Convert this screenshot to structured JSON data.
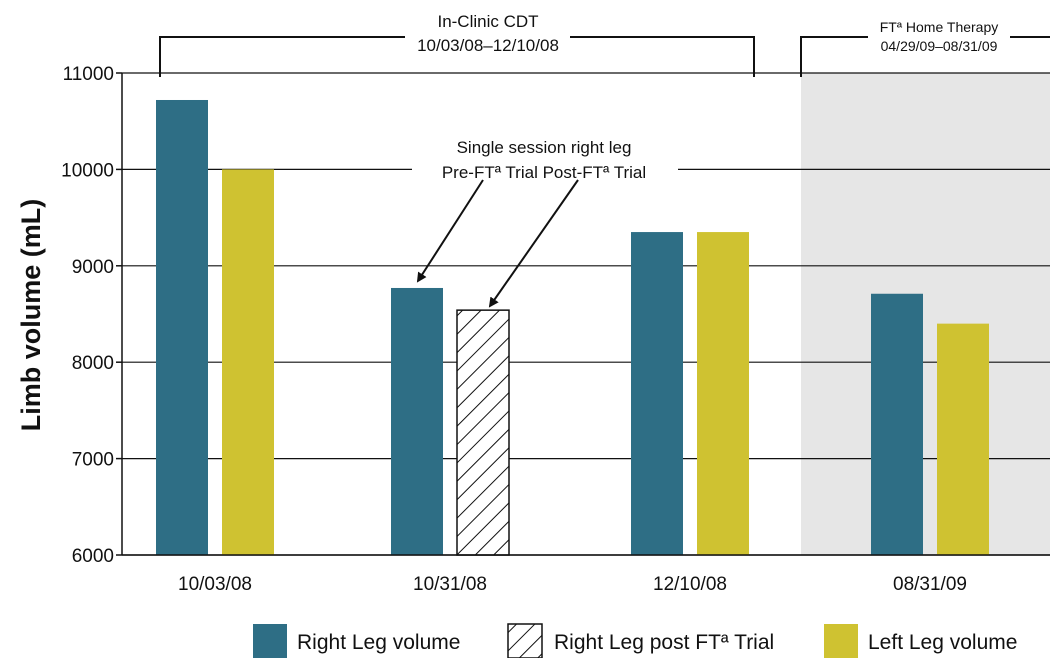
{
  "chart_data": {
    "type": "bar",
    "ylabel": "Limb volume (mL)",
    "xlabel": "",
    "ylim": [
      6000,
      11000
    ],
    "yticks": [
      6000,
      7000,
      8000,
      9000,
      10000,
      11000
    ],
    "grid": true,
    "categories": [
      "10/03/08",
      "10/31/08",
      "12/10/08",
      "08/31/09"
    ],
    "series": [
      {
        "name": "Right Leg volume",
        "values": [
          10720,
          8770,
          9350,
          8710
        ],
        "color": "#2e6e85",
        "pattern": "solid"
      },
      {
        "name": "Right Leg post FTª Trial",
        "values": [
          null,
          8540,
          null,
          null
        ],
        "color": "#ffffff",
        "pattern": "hatch"
      },
      {
        "name": "Left Leg volume",
        "values": [
          10000,
          null,
          9350,
          8400
        ],
        "color": "#cfc231",
        "pattern": "solid"
      }
    ],
    "annotations": {
      "clinic_title": "In-Clinic CDT",
      "clinic_dates": "10/03/08–12/10/08",
      "home_title": "FTª Home Therapy",
      "home_dates": "04/29/09–08/31/09",
      "single_session_line1": "Single session right leg",
      "single_session_line2": "Pre-FTª Trial Post-FTª Trial"
    },
    "shaded_region": {
      "category": "08/31/09",
      "color": "#e6e6e6"
    },
    "legend": {
      "position": "bottom"
    }
  }
}
